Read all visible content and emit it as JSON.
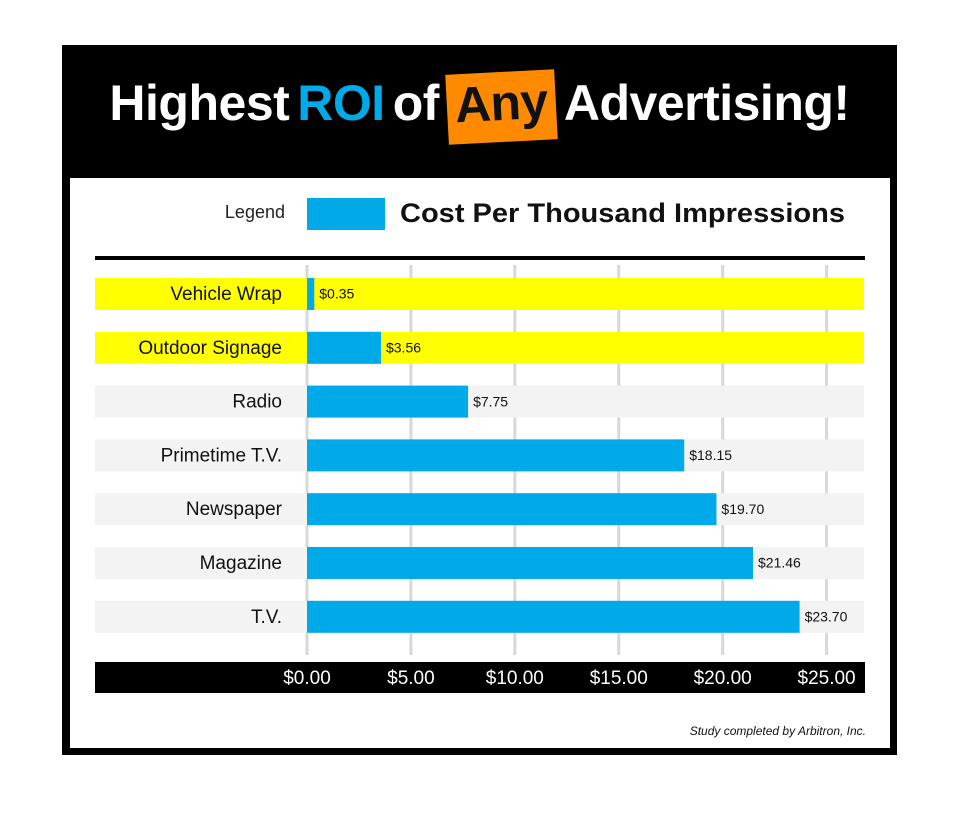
{
  "chart_data": {
    "type": "bar",
    "orientation": "horizontal",
    "title": [
      "Highest",
      "ROI",
      "of",
      "Any",
      "Advertising!"
    ],
    "legend_title": "Legend",
    "series": [
      {
        "name": "Cost Per Thousand Impressions",
        "color": "#00a9e8",
        "values": [
          0.35,
          3.56,
          7.75,
          18.15,
          19.7,
          21.46,
          23.7
        ],
        "value_labels": [
          "$0.35",
          "$3.56",
          "$7.75",
          "$18.15",
          "$19.70",
          "$21.46",
          "$23.70"
        ]
      }
    ],
    "categories": [
      "Vehicle Wrap",
      "Outdoor Signage",
      "Radio",
      "Primetime T.V.",
      "Newspaper",
      "Magazine",
      "T.V."
    ],
    "highlight": [
      true,
      true,
      false,
      false,
      false,
      false,
      false
    ],
    "highlight_color": "#ffff00",
    "xlim": [
      0,
      26.8
    ],
    "xticks": [
      {
        "value": 0,
        "label": "$0.00"
      },
      {
        "value": 5,
        "label": "$5.00"
      },
      {
        "value": 10,
        "label": "$10.00"
      },
      {
        "value": 15,
        "label": "$15.00"
      },
      {
        "value": 20,
        "label": "$20.00"
      },
      {
        "value": 25,
        "label": "$25.00"
      }
    ],
    "grid": true,
    "source": "Study completed by Arbitron, Inc."
  }
}
